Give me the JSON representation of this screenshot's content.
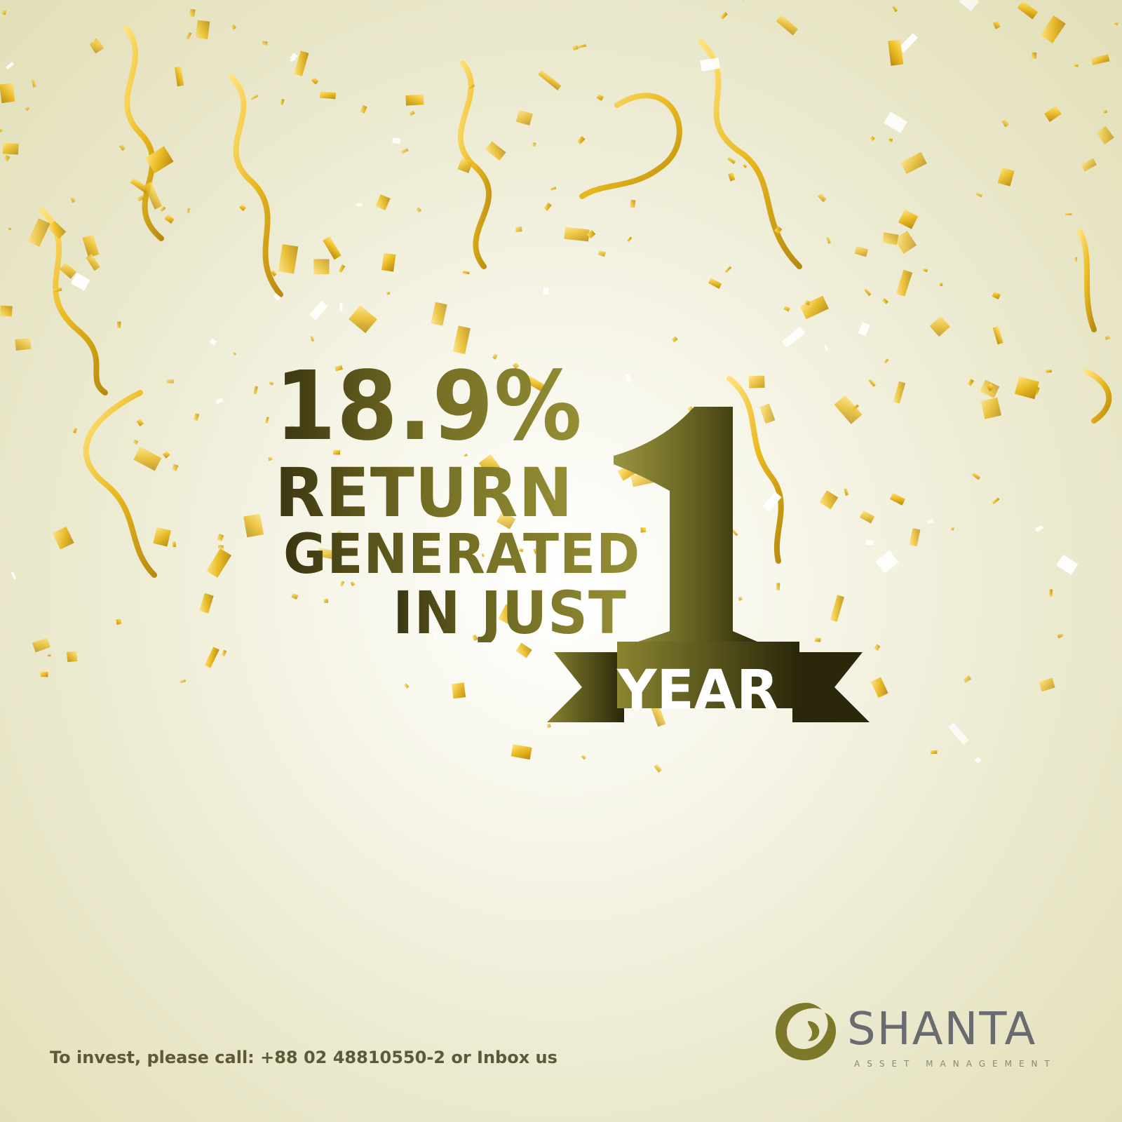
{
  "headline": {
    "percent": "18.9%",
    "line2": "RETURN",
    "line3": "GENERATED",
    "line4": "IN JUST",
    "big_number": "1",
    "ribbon_text": "YEAR"
  },
  "footer": {
    "call_to_action": "To invest, please call: +88 02 48810550-2 or Inbox us"
  },
  "brand": {
    "name": "SHANTA",
    "tagline": "ASSET MANAGEMENT"
  },
  "colors": {
    "dark_gold": "#3a3510",
    "olive_gold": "#8a8530",
    "confetti_gold": "#e8b81e",
    "logo_olive": "#7c7a2a",
    "logo_grey": "#6a6b70"
  },
  "icons": {
    "logo_mark": "shanta-swirl-logo-icon",
    "decoration": "gold-confetti-streamers"
  }
}
